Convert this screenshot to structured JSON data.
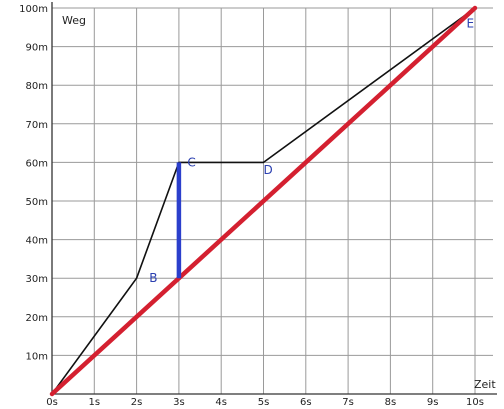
{
  "chart_data": {
    "type": "line",
    "xlabel": "Zeit",
    "ylabel": "Weg",
    "xlim": [
      0,
      10
    ],
    "ylim": [
      0,
      100
    ],
    "x_ticks": [
      "0s",
      "1s",
      "2s",
      "3s",
      "4s",
      "5s",
      "6s",
      "7s",
      "8s",
      "9s",
      "10s"
    ],
    "y_ticks": [
      "10m",
      "20m",
      "30m",
      "40m",
      "50m",
      "60m",
      "70m",
      "80m",
      "90m",
      "100m"
    ],
    "grid": true,
    "series": [
      {
        "x": [
          0,
          2,
          3,
          5,
          10
        ],
        "y": [
          0,
          30,
          60,
          60,
          100
        ],
        "color": "#111111"
      },
      {
        "x": [
          0,
          10
        ],
        "y": [
          0,
          100
        ],
        "color": "#d42030"
      }
    ],
    "vertical_segment": {
      "x": 3,
      "y": [
        30,
        60
      ],
      "color": "#2b3fcc"
    },
    "point_labels": [
      {
        "text": "B",
        "x": 2.3,
        "y": 30
      },
      {
        "text": "C",
        "x": 3.2,
        "y": 60
      },
      {
        "text": "D",
        "x": 5,
        "y": 58
      },
      {
        "text": "E",
        "x": 9.8,
        "y": 96
      }
    ]
  }
}
